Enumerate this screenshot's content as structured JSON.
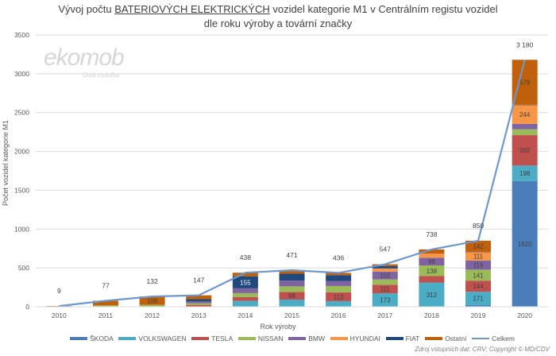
{
  "chart_data": {
    "type": "bar",
    "stacked": true,
    "title_line1_prefix": "Vývoj počtu ",
    "title_line1_underlined": "BATERIOVÝCH ELEKTRICKÝCH",
    "title_line1_suffix": " vozidel kategorie M1 v Centrálním registu vozidel",
    "title_line2": "dle roku výroby a tovární značky",
    "xlabel": "Rok výroby",
    "ylabel": "Počet vozidel kategorie M1",
    "ylim": [
      0,
      3500
    ],
    "yticks": [
      0,
      500,
      1000,
      1500,
      2000,
      2500,
      3000,
      3500
    ],
    "grid": true,
    "legend_position": "bottom",
    "categories": [
      "2010",
      "2011",
      "2012",
      "2013",
      "2014",
      "2015",
      "2016",
      "2017",
      "2018",
      "2019",
      "2020"
    ],
    "series": [
      {
        "name": "ŠKODA",
        "color": "#4a7ebb",
        "values": [
          0,
          0,
          0,
          0,
          0,
          0,
          0,
          0,
          0,
          21,
          1620
        ]
      },
      {
        "name": "VOLKSWAGEN",
        "color": "#4bacc6",
        "values": [
          0,
          0,
          0,
          0,
          75,
          92,
          72,
          173,
          312,
          171,
          198
        ]
      },
      {
        "name": "TESLA",
        "color": "#c0504d",
        "values": [
          0,
          0,
          0,
          24,
          48,
          98,
          113,
          111,
          82,
          144,
          392
        ]
      },
      {
        "name": "NISSAN",
        "color": "#9bbb59",
        "values": [
          3,
          17,
          24,
          21,
          52,
          72,
          82,
          67,
          138,
          141,
          75
        ]
      },
      {
        "name": "BMW",
        "color": "#8064a2",
        "values": [
          0,
          0,
          0,
          23,
          62,
          74,
          65,
          102,
          98,
          119,
          70
        ]
      },
      {
        "name": "HYUNDAI",
        "color": "#f79646",
        "values": [
          0,
          0,
          0,
          0,
          0,
          0,
          0,
          40,
          53,
          111,
          244
        ]
      },
      {
        "name": "FIAT",
        "color": "#1f497d",
        "values": [
          0,
          0,
          0,
          29,
          155,
          89,
          74,
          30,
          0,
          1,
          2
        ]
      },
      {
        "name": "Ostatní",
        "color": "#c0600a",
        "values": [
          6,
          60,
          108,
          50,
          46,
          46,
          30,
          24,
          55,
          142,
          579
        ]
      }
    ],
    "total_line": {
      "name": "Celkem",
      "color": "#6c97d0",
      "values": [
        9,
        77,
        132,
        147,
        438,
        471,
        436,
        547,
        738,
        850,
        3180
      ]
    },
    "total_labels": [
      "9",
      "77",
      "132",
      "147",
      "438",
      "471",
      "436",
      "547",
      "738",
      "850",
      "3 180"
    ]
  },
  "watermark": {
    "brand": "ekomob",
    "tagline": "čistá mobilita"
  },
  "source": "Zdroj vstupních dat: CRV; Copyright © MD/CDV"
}
